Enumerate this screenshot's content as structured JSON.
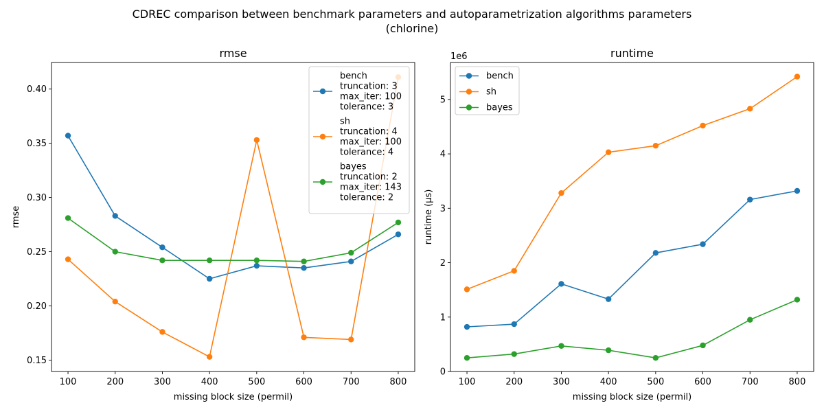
{
  "figure": {
    "suptitle_line1": "CDREC comparison between benchmark parameters and autoparametrization algorithms parameters",
    "suptitle_line2": "(chlorine)"
  },
  "colors": {
    "bench": "#1f77b4",
    "sh": "#ff7f0e",
    "bayes": "#2ca02c"
  },
  "chart_data": [
    {
      "type": "line",
      "title": "rmse",
      "xlabel": "missing block size (permil)",
      "ylabel": "rmse",
      "x": [
        100,
        200,
        300,
        400,
        500,
        600,
        700,
        800
      ],
      "xlim": [
        65,
        835
      ],
      "ylim": [
        0.1395,
        0.4245
      ],
      "xticks": [
        100,
        200,
        300,
        400,
        500,
        600,
        700,
        800
      ],
      "yticks": [
        0.15,
        0.2,
        0.25,
        0.3,
        0.35,
        0.4
      ],
      "ytick_labels": [
        "0.15",
        "0.20",
        "0.25",
        "0.30",
        "0.35",
        "0.40"
      ],
      "legend_position": "upper right",
      "grid": false,
      "series": [
        {
          "name": "bench",
          "legend": [
            "bench",
            "truncation: 3",
            "max_iter: 100",
            "tolerance: 3"
          ],
          "values": [
            0.357,
            0.283,
            0.254,
            0.225,
            0.237,
            0.235,
            0.241,
            0.266
          ]
        },
        {
          "name": "sh",
          "legend": [
            "sh",
            "truncation: 4",
            "max_iter: 100",
            "tolerance: 4"
          ],
          "values": [
            0.243,
            0.204,
            0.176,
            0.153,
            0.353,
            0.171,
            0.169,
            0.411
          ]
        },
        {
          "name": "bayes",
          "legend": [
            "bayes",
            "truncation: 2",
            "max_iter: 143",
            "tolerance: 2"
          ],
          "values": [
            0.281,
            0.25,
            0.242,
            0.242,
            0.242,
            0.241,
            0.249,
            0.277
          ]
        }
      ]
    },
    {
      "type": "line",
      "title": "runtime",
      "xlabel": "missing block size (permil)",
      "ylabel": "runtime (µs)",
      "y_offset_label": "1e6",
      "x": [
        100,
        200,
        300,
        400,
        500,
        600,
        700,
        800
      ],
      "xlim": [
        65,
        835
      ],
      "ylim": [
        0,
        5.68
      ],
      "xticks": [
        100,
        200,
        300,
        400,
        500,
        600,
        700,
        800
      ],
      "yticks": [
        0,
        1,
        2,
        3,
        4,
        5
      ],
      "ytick_labels": [
        "0",
        "1",
        "2",
        "3",
        "4",
        "5"
      ],
      "legend_position": "upper left",
      "grid": false,
      "series": [
        {
          "name": "bench",
          "legend": [
            "bench"
          ],
          "values": [
            0.82,
            0.87,
            1.61,
            1.33,
            2.18,
            2.34,
            3.16,
            3.32
          ]
        },
        {
          "name": "sh",
          "legend": [
            "sh"
          ],
          "values": [
            1.51,
            1.85,
            3.28,
            4.03,
            4.15,
            4.52,
            4.83,
            5.42
          ]
        },
        {
          "name": "bayes",
          "legend": [
            "bayes"
          ],
          "values": [
            0.25,
            0.32,
            0.47,
            0.39,
            0.25,
            0.48,
            0.95,
            1.32
          ]
        }
      ]
    }
  ]
}
